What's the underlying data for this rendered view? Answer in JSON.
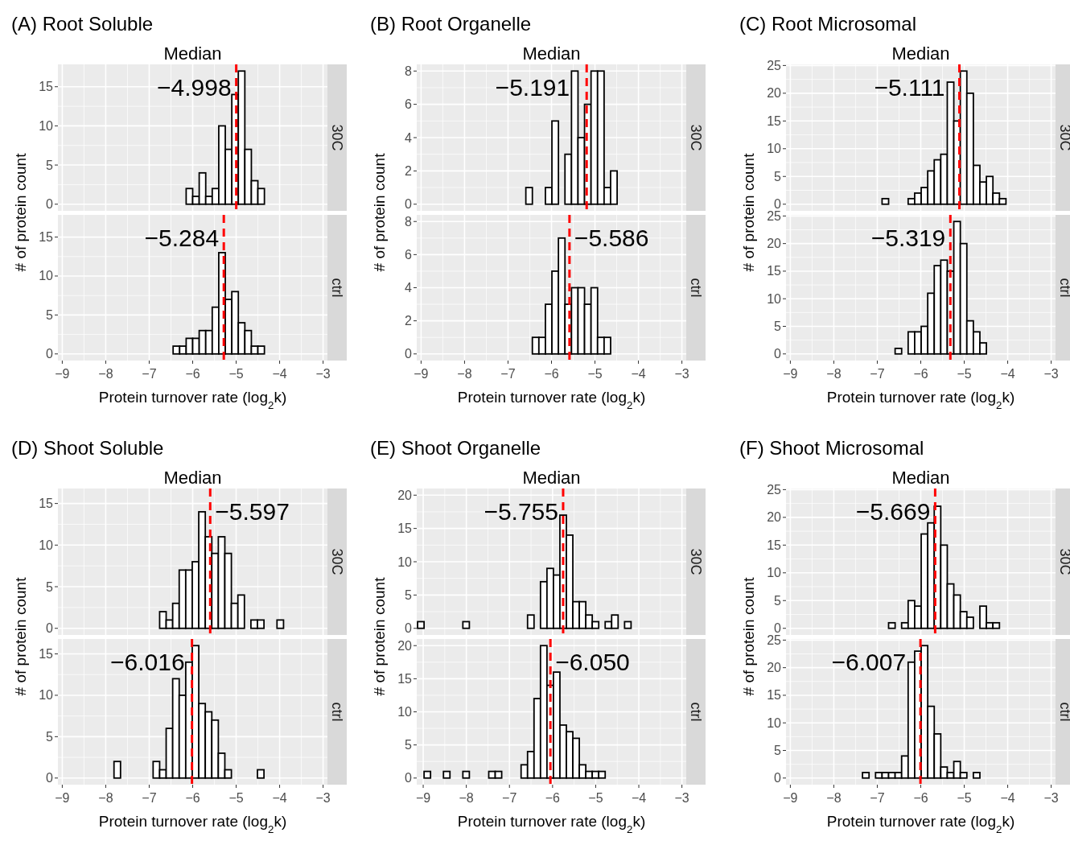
{
  "chart_data": [
    {
      "type": "histogram",
      "title": "(A) Root Soluble",
      "subtitle": "Median",
      "ylabel": "# of protein count",
      "annotations": [
        "30C"
      ],
      "bins": [
        -6.6,
        -6.45,
        -6.3,
        -6.15,
        -6.0,
        -5.85,
        -5.7,
        -5.55,
        -5.4,
        -5.25,
        -5.1,
        -4.95,
        -4.8,
        -4.65,
        -4.5,
        -4.35,
        -4.2
      ],
      "values": [
        0,
        0,
        0,
        2,
        1,
        4,
        1,
        2,
        10,
        7,
        14,
        17,
        7,
        3,
        2,
        0
      ],
      "color": "#ffffff",
      "xlim": [
        -9.1,
        -2.9
      ],
      "xticks": [
        -9,
        -8,
        -7,
        -6,
        -5,
        -4,
        -3
      ],
      "ylim": [
        -0.85,
        17.85
      ],
      "yticks": [
        0,
        5,
        10,
        15
      ],
      "grid": true,
      "tick_labels": "y",
      "ref_lines": [
        {
          "axis": "x",
          "value": -4.998,
          "label": "−4.998",
          "color": "#ff0000",
          "line_style": "dashed"
        }
      ]
    },
    {
      "type": "histogram",
      "xlabel": "Protein turnover rate (log$_{2}$k)",
      "annotations": [
        "ctrl"
      ],
      "bins": [
        -6.6,
        -6.45,
        -6.3,
        -6.15,
        -6.0,
        -5.85,
        -5.7,
        -5.55,
        -5.4,
        -5.25,
        -5.1,
        -4.95,
        -4.8,
        -4.65,
        -4.5,
        -4.35,
        -4.2
      ],
      "values": [
        0,
        1,
        1,
        2,
        2,
        3,
        3,
        6,
        13,
        7,
        8,
        4,
        3,
        1,
        1,
        0
      ],
      "color": "#ffffff",
      "xlim": [
        -9.1,
        -2.9
      ],
      "xticks": [
        -9,
        -8,
        -7,
        -6,
        -5,
        -4,
        -3
      ],
      "ylim": [
        -0.85,
        17.85
      ],
      "yticks": [
        0,
        5,
        10,
        15
      ],
      "grid": true,
      "ref_lines": [
        {
          "axis": "x",
          "value": -5.284,
          "label": "−5.284",
          "color": "#ff0000",
          "line_style": "dashed"
        }
      ]
    },
    {
      "type": "histogram",
      "title": "(B) Root Organelle",
      "subtitle": "Median",
      "ylabel": "# of protein count",
      "annotations": [
        "30C"
      ],
      "bins": [
        -6.74,
        -6.59,
        -6.44,
        -6.29,
        -6.14,
        -5.99,
        -5.84,
        -5.69,
        -5.54,
        -5.39,
        -5.24,
        -5.09,
        -4.94,
        -4.79,
        -4.64,
        -4.49,
        -4.34
      ],
      "values": [
        0,
        1,
        0,
        0,
        1,
        5,
        0,
        3,
        8,
        4,
        6,
        8,
        8,
        1,
        2,
        0
      ],
      "color": "#ffffff",
      "xlim": [
        -9.1,
        -2.9
      ],
      "xticks": [
        -9,
        -8,
        -7,
        -6,
        -5,
        -4,
        -3
      ],
      "ylim": [
        -0.4,
        8.4
      ],
      "yticks": [
        0,
        2,
        4,
        6,
        8
      ],
      "grid": true,
      "tick_labels": "y",
      "ref_lines": [
        {
          "axis": "x",
          "value": -5.191,
          "label": "−5.191",
          "color": "#ff0000",
          "line_style": "dashed"
        }
      ]
    },
    {
      "type": "histogram",
      "xlabel": "Protein turnover rate (log$_{2}$k)",
      "annotations": [
        "ctrl"
      ],
      "bins": [
        -6.74,
        -6.59,
        -6.44,
        -6.29,
        -6.14,
        -5.99,
        -5.84,
        -5.69,
        -5.54,
        -5.39,
        -5.24,
        -5.09,
        -4.94,
        -4.79,
        -4.64,
        -4.49,
        -4.34
      ],
      "values": [
        0,
        0,
        1,
        1,
        3,
        5,
        7,
        3,
        4,
        4,
        3,
        4,
        1,
        1,
        0,
        0
      ],
      "color": "#ffffff",
      "xlim": [
        -9.1,
        -2.9
      ],
      "xticks": [
        -9,
        -8,
        -7,
        -6,
        -5,
        -4,
        -3
      ],
      "ylim": [
        -0.4,
        8.4
      ],
      "yticks": [
        0,
        2,
        4,
        6,
        8
      ],
      "grid": true,
      "ref_lines": [
        {
          "axis": "x",
          "value": -5.586,
          "label": "−5.586",
          "color": "#ff0000",
          "line_style": "dashed"
        }
      ]
    },
    {
      "type": "histogram",
      "title": "(C) Root Microsomal",
      "subtitle": "Median",
      "ylabel": "# of protein count",
      "annotations": [
        "30C"
      ],
      "bins": [
        -7.04,
        -6.89,
        -6.74,
        -6.59,
        -6.44,
        -6.29,
        -6.14,
        -5.99,
        -5.84,
        -5.69,
        -5.54,
        -5.39,
        -5.24,
        -5.09,
        -4.94,
        -4.79,
        -4.64,
        -4.49,
        -4.34,
        -4.19,
        -4.04,
        -3.89
      ],
      "values": [
        0,
        1,
        0,
        0,
        0,
        1,
        2,
        3,
        6,
        8,
        9,
        22,
        15,
        24,
        20,
        7,
        4,
        5,
        2,
        1,
        0
      ],
      "color": "#ffffff",
      "xlim": [
        -9.1,
        -2.9
      ],
      "xticks": [
        -9,
        -8,
        -7,
        -6,
        -5,
        -4,
        -3
      ],
      "ylim": [
        -1.2,
        25.2
      ],
      "yticks": [
        0,
        5,
        10,
        15,
        20,
        25
      ],
      "grid": true,
      "tick_labels": "y",
      "ref_lines": [
        {
          "axis": "x",
          "value": -5.111,
          "label": "−5.111",
          "color": "#ff0000",
          "line_style": "dashed"
        }
      ]
    },
    {
      "type": "histogram",
      "xlabel": "Protein turnover rate (log$_{2}$k)",
      "annotations": [
        "ctrl"
      ],
      "bins": [
        -7.04,
        -6.89,
        -6.74,
        -6.59,
        -6.44,
        -6.29,
        -6.14,
        -5.99,
        -5.84,
        -5.69,
        -5.54,
        -5.39,
        -5.24,
        -5.09,
        -4.94,
        -4.79,
        -4.64,
        -4.49,
        -4.34,
        -4.19,
        -4.04,
        -3.89
      ],
      "values": [
        0,
        0,
        0,
        1,
        0,
        4,
        4,
        5,
        11,
        16,
        17,
        15,
        24,
        20,
        6,
        4,
        2,
        0,
        0,
        0,
        0
      ],
      "color": "#ffffff",
      "xlim": [
        -9.1,
        -2.9
      ],
      "xticks": [
        -9,
        -8,
        -7,
        -6,
        -5,
        -4,
        -3
      ],
      "ylim": [
        -1.2,
        25.2
      ],
      "yticks": [
        0,
        5,
        10,
        15,
        20,
        25
      ],
      "grid": true,
      "ref_lines": [
        {
          "axis": "x",
          "value": -5.319,
          "label": "−5.319",
          "color": "#ff0000",
          "line_style": "dashed"
        }
      ]
    },
    {
      "type": "histogram",
      "title": "(D) Shoot Soluble",
      "subtitle": "Median",
      "ylabel": "# of protein count",
      "annotations": [
        "30C"
      ],
      "bins": [
        -7.96,
        -7.81,
        -7.66,
        -7.51,
        -7.36,
        -7.21,
        -7.06,
        -6.91,
        -6.76,
        -6.61,
        -6.46,
        -6.31,
        -6.16,
        -6.01,
        -5.86,
        -5.71,
        -5.56,
        -5.41,
        -5.26,
        -5.11,
        -4.96,
        -4.81,
        -4.66,
        -4.51,
        -4.36,
        -4.21,
        -4.06,
        -3.91,
        -3.76
      ],
      "values": [
        0,
        0,
        0,
        0,
        0,
        0,
        0,
        0,
        2,
        1,
        3,
        7,
        7,
        8,
        14,
        11,
        9,
        11,
        9,
        3,
        4,
        0,
        1,
        1,
        0,
        0,
        1,
        0
      ],
      "color": "#ffffff",
      "xlim": [
        -9.1,
        -2.9
      ],
      "xticks": [
        -9,
        -8,
        -7,
        -6,
        -5,
        -4,
        -3
      ],
      "ylim": [
        -0.8,
        16.8
      ],
      "yticks": [
        0,
        5,
        10,
        15
      ],
      "grid": true,
      "tick_labels": "y",
      "ref_lines": [
        {
          "axis": "x",
          "value": -5.597,
          "label": "−5.597",
          "color": "#ff0000",
          "line_style": "dashed"
        }
      ]
    },
    {
      "type": "histogram",
      "xlabel": "Protein turnover rate (log$_{2}$k)",
      "annotations": [
        "ctrl"
      ],
      "bins": [
        -7.96,
        -7.81,
        -7.66,
        -7.51,
        -7.36,
        -7.21,
        -7.06,
        -6.91,
        -6.76,
        -6.61,
        -6.46,
        -6.31,
        -6.16,
        -6.01,
        -5.86,
        -5.71,
        -5.56,
        -5.41,
        -5.26,
        -5.11,
        -4.96,
        -4.81,
        -4.66,
        -4.51,
        -4.36,
        -4.21,
        -4.06,
        -3.91,
        -3.76
      ],
      "values": [
        0,
        2,
        0,
        0,
        0,
        0,
        0,
        2,
        1,
        6,
        12,
        10,
        14,
        16,
        9,
        8,
        7,
        3,
        1,
        0,
        0,
        0,
        0,
        1,
        0,
        0,
        0,
        0
      ],
      "color": "#ffffff",
      "xlim": [
        -9.1,
        -2.9
      ],
      "xticks": [
        -9,
        -8,
        -7,
        -6,
        -5,
        -4,
        -3
      ],
      "ylim": [
        -0.8,
        16.8
      ],
      "yticks": [
        0,
        5,
        10,
        15
      ],
      "grid": true,
      "ref_lines": [
        {
          "axis": "x",
          "value": -6.016,
          "label": "−6.016",
          "color": "#ff0000",
          "line_style": "dashed"
        }
      ]
    },
    {
      "type": "histogram",
      "title": "(E) Shoot Organelle",
      "subtitle": "Median",
      "ylabel": "# of protein count",
      "annotations": [
        "30C"
      ],
      "bins": [
        -9.13,
        -8.98,
        -8.83,
        -8.68,
        -8.53,
        -8.38,
        -8.23,
        -8.08,
        -7.93,
        -7.78,
        -7.63,
        -7.48,
        -7.33,
        -7.18,
        -7.03,
        -6.88,
        -6.73,
        -6.58,
        -6.43,
        -6.28,
        -6.13,
        -5.98,
        -5.83,
        -5.68,
        -5.53,
        -5.38,
        -5.23,
        -5.08,
        -4.93,
        -4.78,
        -4.63,
        -4.48,
        -4.33,
        -4.18,
        -4.03
      ],
      "values": [
        1,
        0,
        0,
        0,
        0,
        0,
        0,
        1,
        0,
        0,
        0,
        0,
        0,
        0,
        0,
        0,
        0,
        2,
        0,
        7,
        9,
        8,
        17,
        14,
        4,
        4,
        2,
        1,
        0,
        1,
        2,
        0,
        1,
        0
      ],
      "color": "#ffffff",
      "xlim": [
        -9.15,
        -2.9
      ],
      "xticks": [
        -9,
        -8,
        -7,
        -6,
        -5,
        -4,
        -3
      ],
      "ylim": [
        -1,
        21
      ],
      "yticks": [
        0,
        5,
        10,
        15,
        20
      ],
      "grid": true,
      "tick_labels": "y",
      "ref_lines": [
        {
          "axis": "x",
          "value": -5.755,
          "label": "−5.755",
          "color": "#ff0000",
          "line_style": "dashed"
        }
      ]
    },
    {
      "type": "histogram",
      "xlabel": "Protein turnover rate (log$_{2}$k)",
      "annotations": [
        "ctrl"
      ],
      "bins": [
        -9.13,
        -8.98,
        -8.83,
        -8.68,
        -8.53,
        -8.38,
        -8.23,
        -8.08,
        -7.93,
        -7.78,
        -7.63,
        -7.48,
        -7.33,
        -7.18,
        -7.03,
        -6.88,
        -6.73,
        -6.58,
        -6.43,
        -6.28,
        -6.13,
        -5.98,
        -5.83,
        -5.68,
        -5.53,
        -5.38,
        -5.23,
        -5.08,
        -4.93,
        -4.78,
        -4.63,
        -4.48,
        -4.33,
        -4.18,
        -4.03
      ],
      "values": [
        0,
        1,
        0,
        0,
        1,
        0,
        0,
        1,
        0,
        0,
        0,
        1,
        1,
        0,
        0,
        0,
        2,
        4,
        12,
        20,
        14,
        16,
        8,
        7,
        6,
        2,
        1,
        1,
        1,
        0,
        0,
        0,
        0,
        0
      ],
      "color": "#ffffff",
      "xlim": [
        -9.15,
        -2.9
      ],
      "xticks": [
        -9,
        -8,
        -7,
        -6,
        -5,
        -4,
        -3
      ],
      "ylim": [
        -1,
        21
      ],
      "yticks": [
        0,
        5,
        10,
        15,
        20
      ],
      "grid": true,
      "ref_lines": [
        {
          "axis": "x",
          "value": -6.05,
          "label": "−6.050",
          "color": "#ff0000",
          "line_style": "dashed"
        }
      ]
    },
    {
      "type": "histogram",
      "title": "(F) Shoot Microsomal",
      "subtitle": "Median",
      "ylabel": "# of protein count",
      "annotations": [
        "30C"
      ],
      "bins": [
        -7.49,
        -7.34,
        -7.19,
        -7.04,
        -6.89,
        -6.74,
        -6.59,
        -6.44,
        -6.29,
        -6.14,
        -5.99,
        -5.84,
        -5.69,
        -5.54,
        -5.39,
        -5.24,
        -5.09,
        -4.94,
        -4.79,
        -4.64,
        -4.49,
        -4.34,
        -4.19,
        -4.04
      ],
      "values": [
        0,
        0,
        0,
        0,
        0,
        1,
        0,
        1,
        5,
        4,
        17,
        19,
        22,
        15,
        8,
        6,
        3,
        2,
        0,
        4,
        1,
        1,
        0
      ],
      "color": "#ffffff",
      "xlim": [
        -9.1,
        -2.9
      ],
      "xticks": [
        -9,
        -8,
        -7,
        -6,
        -5,
        -4,
        -3
      ],
      "ylim": [
        -1.2,
        25.2
      ],
      "yticks": [
        0,
        5,
        10,
        15,
        20,
        25
      ],
      "grid": true,
      "tick_labels": "y",
      "ref_lines": [
        {
          "axis": "x",
          "value": -5.669,
          "label": "−5.669",
          "color": "#ff0000",
          "line_style": "dashed"
        }
      ]
    },
    {
      "type": "histogram",
      "xlabel": "Protein turnover rate (log$_{2}$k)",
      "annotations": [
        "ctrl"
      ],
      "bins": [
        -7.49,
        -7.34,
        -7.19,
        -7.04,
        -6.89,
        -6.74,
        -6.59,
        -6.44,
        -6.29,
        -6.14,
        -5.99,
        -5.84,
        -5.69,
        -5.54,
        -5.39,
        -5.24,
        -5.09,
        -4.94,
        -4.79,
        -4.64,
        -4.49,
        -4.34,
        -4.19,
        -4.04
      ],
      "values": [
        0,
        1,
        0,
        1,
        1,
        1,
        1,
        4,
        21,
        23,
        24,
        13,
        8,
        2,
        1,
        3,
        1,
        0,
        1,
        0,
        0,
        0,
        0
      ],
      "color": "#ffffff",
      "xlim": [
        -9.1,
        -2.9
      ],
      "xticks": [
        -9,
        -8,
        -7,
        -6,
        -5,
        -4,
        -3
      ],
      "ylim": [
        -1.2,
        25.2
      ],
      "yticks": [
        0,
        5,
        10,
        15,
        20,
        25
      ],
      "grid": true,
      "ref_lines": [
        {
          "axis": "x",
          "value": -6.007,
          "label": "−6.007",
          "color": "#ff0000",
          "line_style": "dashed"
        }
      ]
    }
  ]
}
